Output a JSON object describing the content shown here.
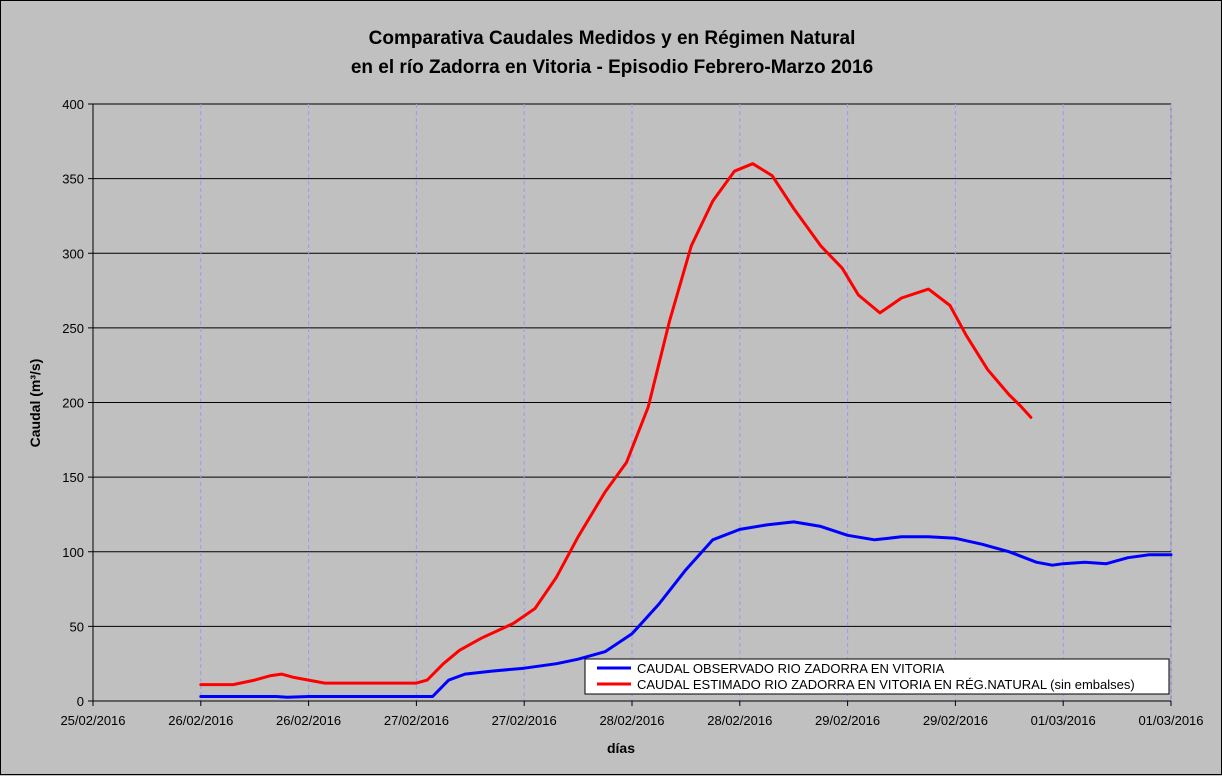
{
  "chart_data": {
    "type": "line",
    "title_line1": "Comparativa Caudales Medidos y en Régimen Natural",
    "title_line2": "en el río Zadorra en Vitoria - Episodio Febrero-Marzo 2016",
    "xlabel": "días",
    "ylabel": "Caudal (m³/s)",
    "ylim": [
      0,
      400
    ],
    "yticks": [
      0,
      50,
      100,
      150,
      200,
      250,
      300,
      350,
      400
    ],
    "xlim": [
      0,
      10
    ],
    "x_tick_labels": [
      "25/02/2016",
      "26/02/2016",
      "26/02/2016",
      "27/02/2016",
      "27/02/2016",
      "28/02/2016",
      "28/02/2016",
      "29/02/2016",
      "29/02/2016",
      "01/03/2016",
      "01/03/2016"
    ],
    "grid": "horizontal solid, vertical dashed",
    "legend_position": "bottom-right",
    "series": [
      {
        "name": "CAUDAL OBSERVADO RIO ZADORRA EN VITORIA",
        "color": "#0000ff",
        "points": [
          [
            1.0,
            3
          ],
          [
            1.7,
            3
          ],
          [
            1.8,
            2.5
          ],
          [
            2.0,
            3
          ],
          [
            3.0,
            3
          ],
          [
            3.15,
            3
          ],
          [
            3.3,
            14
          ],
          [
            3.45,
            18
          ],
          [
            3.7,
            20
          ],
          [
            4.0,
            22
          ],
          [
            4.3,
            25
          ],
          [
            4.5,
            28
          ],
          [
            4.75,
            33
          ],
          [
            5.0,
            45
          ],
          [
            5.25,
            65
          ],
          [
            5.5,
            88
          ],
          [
            5.75,
            108
          ],
          [
            6.0,
            115
          ],
          [
            6.25,
            118
          ],
          [
            6.5,
            120
          ],
          [
            6.75,
            117
          ],
          [
            7.0,
            111
          ],
          [
            7.25,
            108
          ],
          [
            7.5,
            110
          ],
          [
            7.75,
            110
          ],
          [
            8.0,
            109
          ],
          [
            8.25,
            105
          ],
          [
            8.5,
            100
          ],
          [
            8.75,
            93
          ],
          [
            8.9,
            91
          ],
          [
            9.0,
            92
          ],
          [
            9.2,
            93
          ],
          [
            9.4,
            92
          ],
          [
            9.6,
            96
          ],
          [
            9.8,
            98
          ],
          [
            10.0,
            98
          ]
        ]
      },
      {
        "name": "CAUDAL ESTIMADO RIO ZADORRA EN VITORIA EN RÉG.NATURAL (sin embalses)",
        "color": "#ff0000",
        "points": [
          [
            1.0,
            11
          ],
          [
            1.3,
            11
          ],
          [
            1.5,
            14
          ],
          [
            1.65,
            17
          ],
          [
            1.75,
            18
          ],
          [
            1.85,
            16
          ],
          [
            2.0,
            14
          ],
          [
            2.15,
            12
          ],
          [
            2.5,
            12
          ],
          [
            2.8,
            12
          ],
          [
            3.0,
            12
          ],
          [
            3.1,
            14
          ],
          [
            3.25,
            25
          ],
          [
            3.4,
            34
          ],
          [
            3.6,
            42
          ],
          [
            3.9,
            52
          ],
          [
            4.1,
            62
          ],
          [
            4.3,
            83
          ],
          [
            4.5,
            110
          ],
          [
            4.75,
            140
          ],
          [
            4.95,
            160
          ],
          [
            5.15,
            197
          ],
          [
            5.35,
            255
          ],
          [
            5.55,
            305
          ],
          [
            5.75,
            335
          ],
          [
            5.95,
            355
          ],
          [
            6.12,
            360
          ],
          [
            6.3,
            352
          ],
          [
            6.5,
            330
          ],
          [
            6.75,
            305
          ],
          [
            6.95,
            290
          ],
          [
            7.1,
            272
          ],
          [
            7.3,
            260
          ],
          [
            7.5,
            270
          ],
          [
            7.75,
            276
          ],
          [
            7.95,
            265
          ],
          [
            8.1,
            245
          ],
          [
            8.3,
            222
          ],
          [
            8.5,
            205
          ],
          [
            8.6,
            198
          ],
          [
            8.7,
            190
          ]
        ]
      }
    ]
  }
}
